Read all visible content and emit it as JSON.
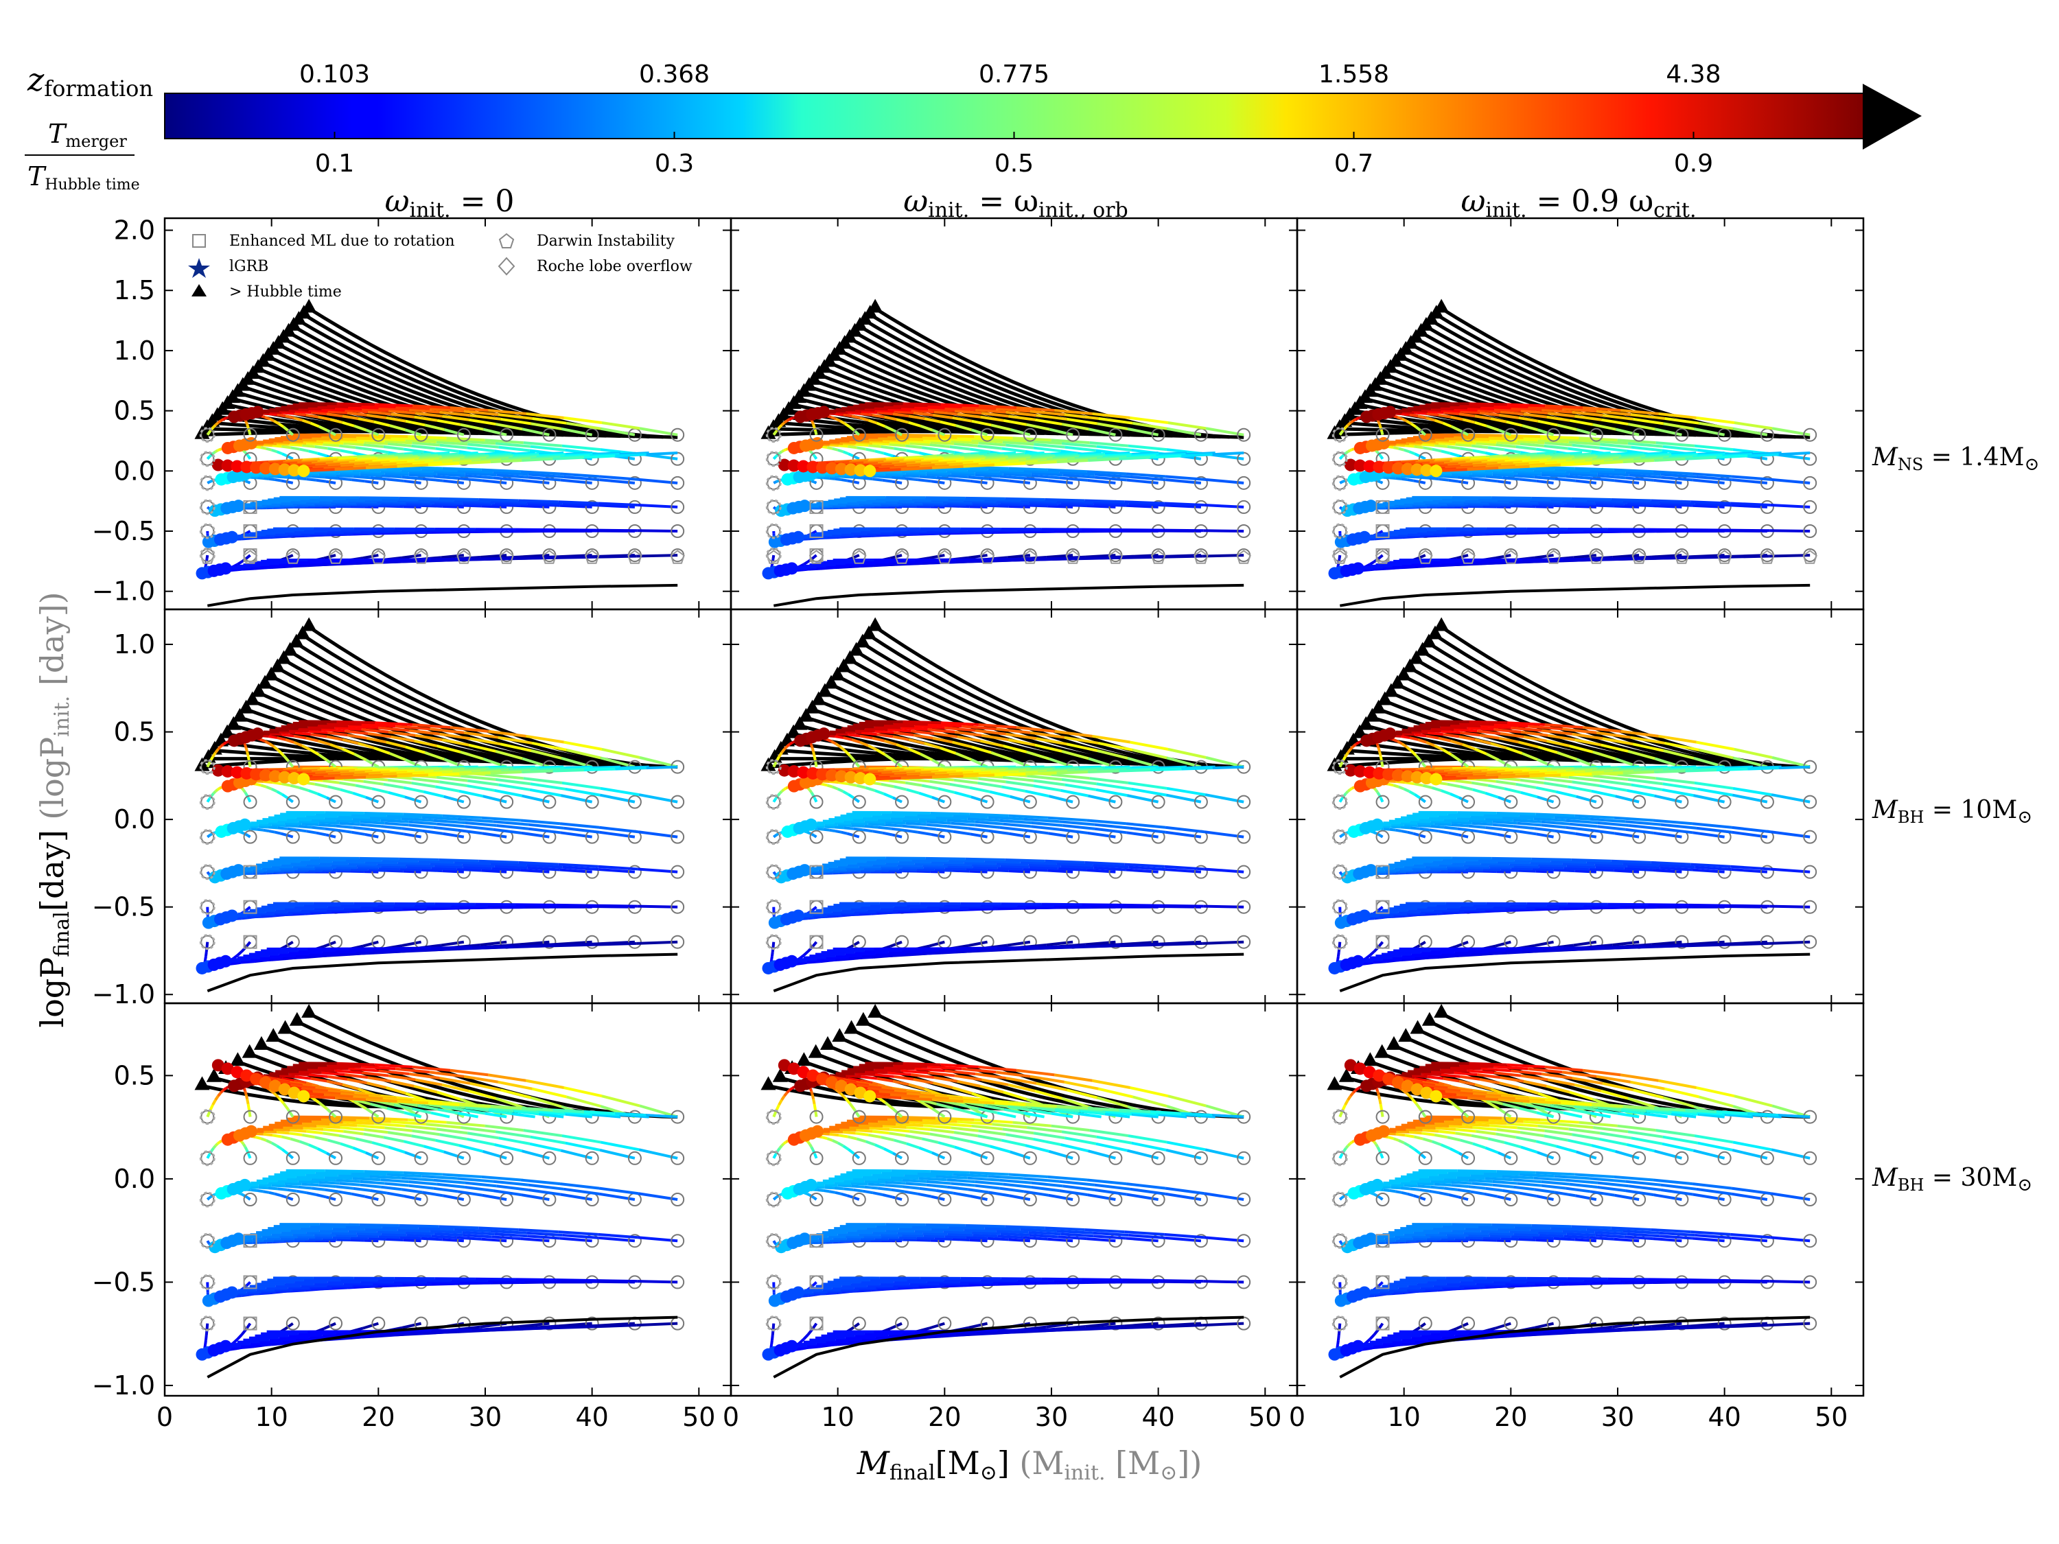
{
  "colorbar": {
    "top_label": "z",
    "top_label_sub": "formation",
    "bottom_label_num": "T",
    "bottom_label_num_sub": "merger",
    "bottom_label_den": "T",
    "bottom_label_den_sub": "Hubble time",
    "top_ticks": [
      "0.103",
      "0.368",
      "0.775",
      "1.558",
      "4.38"
    ],
    "bottom_ticks": [
      "0.1",
      "0.3",
      "0.5",
      "0.7",
      "0.9"
    ],
    "colormap": "jet",
    "range": [
      0,
      1
    ],
    "extend": "max"
  },
  "legend": {
    "items": [
      {
        "symbol": "square",
        "label": "Enhanced ML due to rotation"
      },
      {
        "symbol": "star",
        "label": "lGRB"
      },
      {
        "symbol": "triangle",
        "label": "> Hubble time"
      },
      {
        "symbol": "pentagon",
        "label": "Darwin Instability"
      },
      {
        "symbol": "diamond",
        "label": "Roche lobe overflow"
      }
    ]
  },
  "columns": [
    {
      "title_main": "ω",
      "title_sub": "init.",
      "title_rest": " = 0"
    },
    {
      "title_main": "ω",
      "title_sub": "init.",
      "title_rest": " = ω",
      "title_sub2": "init., orb"
    },
    {
      "title_main": "ω",
      "title_sub": "init.",
      "title_rest": " = 0.9 ω",
      "title_sub2": "crit."
    }
  ],
  "rows": [
    {
      "label_main": "M",
      "label_sub": "NS",
      "label_rest": " = 1.4M",
      "label_sun": "⊙"
    },
    {
      "label_main": "M",
      "label_sub": "BH",
      "label_rest": " = 10M",
      "label_sun": "⊙"
    },
    {
      "label_main": "M",
      "label_sub": "BH",
      "label_rest": " = 30M",
      "label_sun": "⊙"
    }
  ],
  "axes": {
    "xlabel_main": "M",
    "xlabel_sub": "final",
    "xlabel_unit": "[M",
    "xlabel_sun": "⊙",
    "xlabel_close": "]",
    "xlabel_alt": "(M",
    "xlabel_alt_sub": "init.",
    "xlabel_alt_unit": " [M",
    "xlabel_alt_close": "])",
    "ylabel_main": "logP",
    "ylabel_sub": "final",
    "ylabel_unit": "[day]",
    "ylabel_alt": "(logP",
    "ylabel_alt_sub": "init.",
    "ylabel_alt_unit": " [day])",
    "xlim": [
      0,
      53
    ],
    "xticks": [
      0,
      10,
      20,
      30,
      40,
      50
    ],
    "xtick_labels": [
      "0",
      "10",
      "20",
      "30",
      "40",
      "50"
    ],
    "row_ylim": [
      [
        -1.15,
        2.1
      ],
      [
        -1.05,
        1.2
      ],
      [
        -1.05,
        0.85
      ]
    ],
    "row_yticks": [
      [
        -1.0,
        -0.5,
        0.0,
        0.5,
        1.0,
        1.5,
        2.0
      ],
      [
        -1.0,
        -0.5,
        0.0,
        0.5,
        1.0
      ],
      [
        -1.0,
        -0.5,
        0.0,
        0.5
      ]
    ],
    "row_ytick_labels": [
      [
        "−1.0",
        "−0.5",
        "0.0",
        "0.5",
        "1.0",
        "1.5",
        "2.0"
      ],
      [
        "−1.0",
        "−0.5",
        "0.0",
        "0.5",
        "1.0"
      ],
      [
        "−1.0",
        "−0.5",
        "0.0",
        "0.5"
      ]
    ]
  },
  "chart_data": {
    "type": "line",
    "description_axes": "x: final mass (solar masses); y: log final orbital period (days); color: T_merger / T_Hubble time",
    "initial_masses": [
      4,
      8,
      12,
      16,
      20,
      24,
      28,
      32,
      36,
      40,
      44,
      48
    ],
    "row_initial_periods": [
      [
        -0.7,
        -0.5,
        -0.3,
        -0.1,
        0.1,
        0.3
      ],
      [
        -0.7,
        -0.5,
        -0.3,
        -0.1,
        0.1,
        0.3
      ],
      [
        -0.7,
        -0.5,
        -0.3,
        -0.1,
        0.1,
        0.3
      ]
    ],
    "row_max_period_tracks": [
      1.35,
      1.1,
      0.8
    ],
    "row_lower_boundary": [
      [
        [
          4,
          -1.12
        ],
        [
          8,
          -1.06
        ],
        [
          12,
          -1.03
        ],
        [
          20,
          -1.0
        ],
        [
          30,
          -0.98
        ],
        [
          40,
          -0.96
        ],
        [
          48,
          -0.95
        ]
      ],
      [
        [
          4,
          -0.98
        ],
        [
          8,
          -0.89
        ],
        [
          12,
          -0.85
        ],
        [
          20,
          -0.82
        ],
        [
          30,
          -0.8
        ],
        [
          40,
          -0.78
        ],
        [
          48,
          -0.77
        ]
      ],
      [
        [
          4,
          -0.96
        ],
        [
          8,
          -0.85
        ],
        [
          12,
          -0.8
        ],
        [
          20,
          -0.74
        ],
        [
          30,
          -0.7
        ],
        [
          40,
          -0.68
        ],
        [
          48,
          -0.67
        ]
      ]
    ],
    "colors": {
      "circle_edge": "#777777",
      "marker_gray": "#999999",
      "boundary_line": "#000000",
      "over_hubble": "#000000"
    }
  }
}
